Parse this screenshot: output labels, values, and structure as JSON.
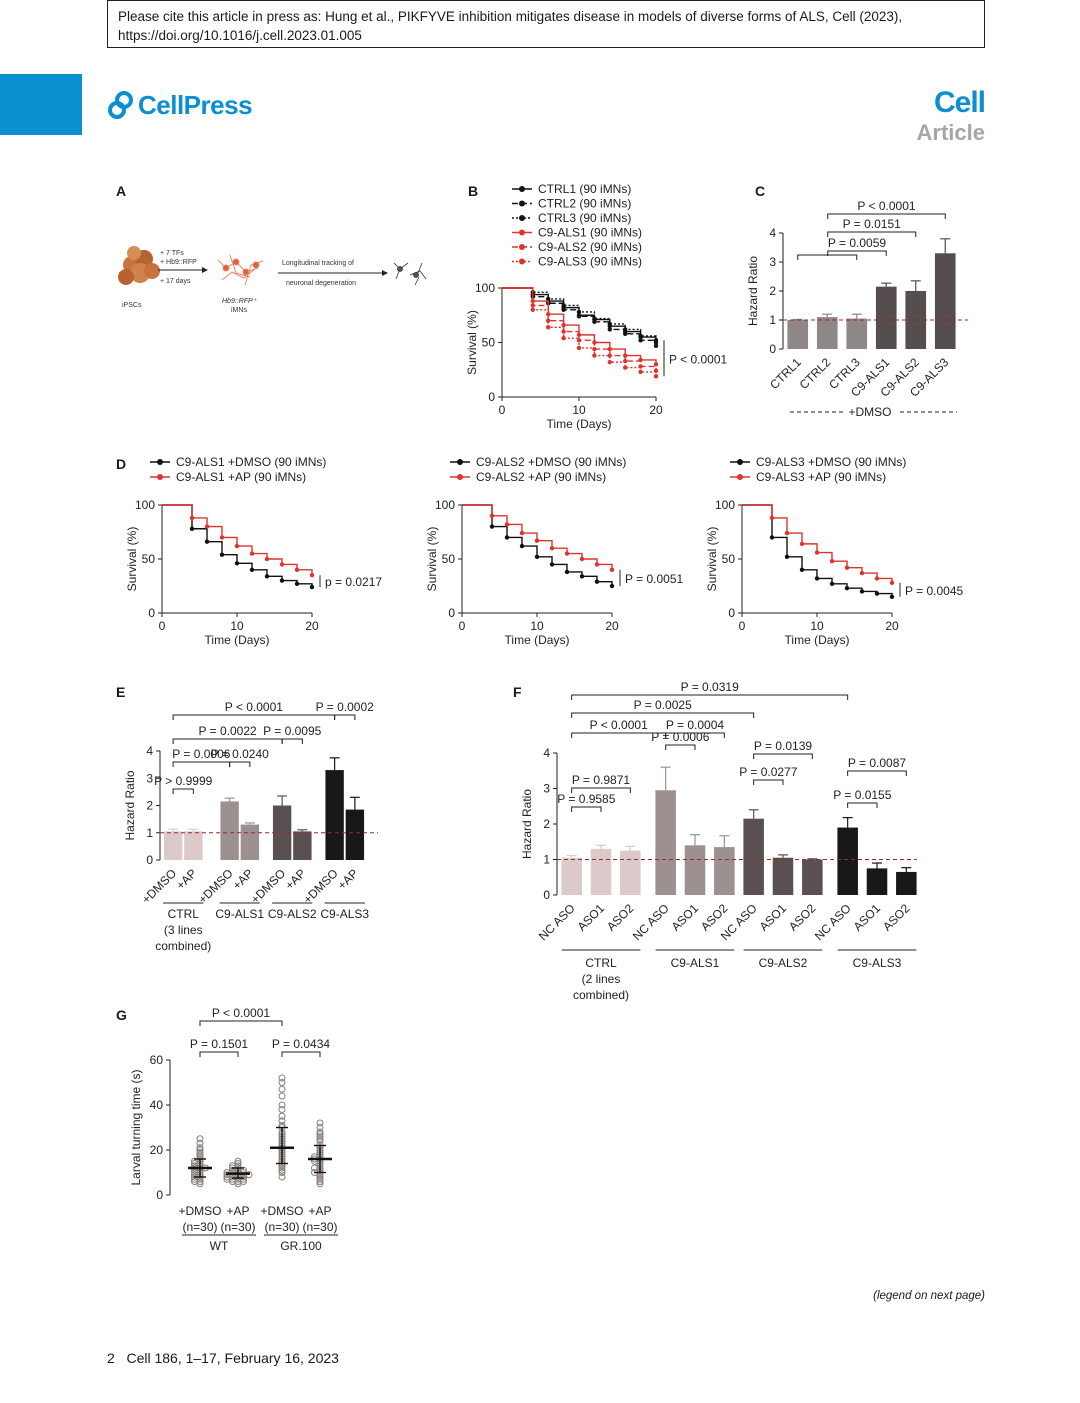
{
  "header": {
    "citation": "Please cite this article in press as: Hung et al., PIKFYVE inhibition mitigates disease in models of diverse forms of ALS, Cell (2023), https://doi.org/10.1016/j.cell.2023.01.005",
    "publisher": "CellPress",
    "journal": "Cell",
    "section": "Article"
  },
  "panels": {
    "A": "A",
    "B": "B",
    "C": "C",
    "D": "D",
    "E": "E",
    "F": "F",
    "G": "G"
  },
  "panelA": {
    "ipscs": "iPSCs",
    "tfs": "+ 7 TFs",
    "hb9": "+ Hb9::RFP",
    "days": "+ 17 days",
    "imns1": "Hb9::RFP⁺",
    "imns2": "iMNs",
    "track1": "Longitudinal tracking of",
    "track2": "neuronal degeneration"
  },
  "footer": {
    "page": "2",
    "journal_info": "Cell 186, 1–17, February 16, 2023",
    "legend_note": "(legend on next page)"
  },
  "chart_data": [
    {
      "panel": "B",
      "type": "line",
      "xlabel": "Time (Days)",
      "ylabel": "Survival (%)",
      "xlim": [
        0,
        20
      ],
      "ylim": [
        0,
        100
      ],
      "xticks": [
        0,
        10,
        20
      ],
      "yticks": [
        0,
        50,
        100
      ],
      "pvalue": "P < 0.0001",
      "series": [
        {
          "name": "CTRL1 (90 iMNs)",
          "color": "#111111",
          "dash": "",
          "x": [
            0,
            4,
            6,
            8,
            10,
            12,
            14,
            16,
            18,
            20
          ],
          "y": [
            100,
            94,
            88,
            82,
            75,
            71,
            65,
            60,
            55,
            50
          ]
        },
        {
          "name": "CTRL2 (90 iMNs)",
          "color": "#111111",
          "dash": "6,3",
          "x": [
            0,
            4,
            6,
            8,
            10,
            12,
            14,
            16,
            18,
            20
          ],
          "y": [
            100,
            92,
            86,
            80,
            74,
            69,
            62,
            58,
            52,
            47
          ]
        },
        {
          "name": "CTRL3 (90 iMNs)",
          "color": "#111111",
          "dash": "2,2",
          "x": [
            0,
            4,
            6,
            8,
            10,
            12,
            14,
            16,
            18,
            20
          ],
          "y": [
            100,
            96,
            90,
            84,
            78,
            72,
            67,
            62,
            56,
            52
          ]
        },
        {
          "name": "C9-ALS1 (90 iMNs)",
          "color": "#e0332e",
          "dash": "",
          "x": [
            0,
            4,
            6,
            8,
            10,
            12,
            14,
            16,
            18,
            20
          ],
          "y": [
            100,
            88,
            76,
            66,
            57,
            50,
            44,
            38,
            34,
            30
          ]
        },
        {
          "name": "C9-ALS2 (90 iMNs)",
          "color": "#e0332e",
          "dash": "6,3",
          "x": [
            0,
            4,
            6,
            8,
            10,
            12,
            14,
            16,
            18,
            20
          ],
          "y": [
            100,
            84,
            70,
            60,
            52,
            44,
            38,
            33,
            28,
            24
          ]
        },
        {
          "name": "C9-ALS3 (90 iMNs)",
          "color": "#e0332e",
          "dash": "2,2",
          "x": [
            0,
            4,
            6,
            8,
            10,
            12,
            14,
            16,
            18,
            20
          ],
          "y": [
            100,
            80,
            64,
            54,
            45,
            38,
            32,
            27,
            23,
            19
          ]
        }
      ]
    },
    {
      "panel": "C",
      "type": "bar",
      "ylabel": "Hazard Ratio",
      "ylim": [
        0,
        4
      ],
      "yticks": [
        0,
        1,
        2,
        3,
        4
      ],
      "categories": [
        "CTRL1",
        "CTRL2",
        "CTRL3",
        "C9-ALS1",
        "C9-ALS2",
        "C9-ALS3"
      ],
      "values": [
        1.0,
        1.1,
        1.05,
        2.15,
        2.0,
        3.3
      ],
      "errors": [
        0.02,
        0.1,
        0.15,
        0.12,
        0.35,
        0.5
      ],
      "colors": [
        "#8e8687",
        "#8e8687",
        "#8e8687",
        "#554d4e",
        "#554d4e",
        "#554d4e"
      ],
      "group_label": "+DMSO",
      "comparisons": [
        "P < 0.0001",
        "P = 0.0151",
        "P = 0.0059"
      ]
    },
    {
      "panel": "D1",
      "type": "line",
      "xlabel": "Time (Days)",
      "ylabel": "Survival (%)",
      "xlim": [
        0,
        20
      ],
      "ylim": [
        0,
        100
      ],
      "xticks": [
        0,
        10,
        20
      ],
      "yticks": [
        0,
        50,
        100
      ],
      "pvalue": "p = 0.0217",
      "series": [
        {
          "name": "C9-ALS1 +DMSO (90 iMNs)",
          "color": "#111111",
          "x": [
            0,
            4,
            6,
            8,
            10,
            12,
            14,
            16,
            18,
            20
          ],
          "y": [
            100,
            78,
            66,
            54,
            46,
            40,
            34,
            30,
            27,
            24
          ]
        },
        {
          "name": "C9-ALS1 +AP (90 iMNs)",
          "color": "#e0332e",
          "x": [
            0,
            4,
            6,
            8,
            10,
            12,
            14,
            16,
            18,
            20
          ],
          "y": [
            100,
            88,
            80,
            70,
            62,
            55,
            50,
            45,
            40,
            35
          ]
        }
      ]
    },
    {
      "panel": "D2",
      "type": "line",
      "xlabel": "Time (Days)",
      "ylabel": "Survival (%)",
      "xlim": [
        0,
        20
      ],
      "ylim": [
        0,
        100
      ],
      "xticks": [
        0,
        10,
        20
      ],
      "yticks": [
        0,
        50,
        100
      ],
      "pvalue": "P = 0.0051",
      "series": [
        {
          "name": "C9-ALS2 +DMSO (90 iMNs)",
          "color": "#111111",
          "x": [
            0,
            4,
            6,
            8,
            10,
            12,
            14,
            16,
            18,
            20
          ],
          "y": [
            100,
            80,
            70,
            62,
            52,
            45,
            38,
            34,
            29,
            25
          ]
        },
        {
          "name": "C9-ALS2 +AP (90 iMNs)",
          "color": "#e0332e",
          "x": [
            0,
            4,
            6,
            8,
            10,
            12,
            14,
            16,
            18,
            20
          ],
          "y": [
            100,
            90,
            82,
            74,
            67,
            60,
            55,
            50,
            45,
            40
          ]
        }
      ]
    },
    {
      "panel": "D3",
      "type": "line",
      "xlabel": "Time (Days)",
      "ylabel": "Survival (%)",
      "xlim": [
        0,
        20
      ],
      "ylim": [
        0,
        100
      ],
      "xticks": [
        0,
        10,
        20
      ],
      "yticks": [
        0,
        50,
        100
      ],
      "pvalue": "P = 0.0045",
      "series": [
        {
          "name": "C9-ALS3 +DMSO (90 iMNs)",
          "color": "#111111",
          "x": [
            0,
            4,
            6,
            8,
            10,
            12,
            14,
            16,
            18,
            20
          ],
          "y": [
            100,
            70,
            52,
            40,
            32,
            27,
            23,
            20,
            18,
            15
          ]
        },
        {
          "name": "C9-ALS3 +AP (90 iMNs)",
          "color": "#e0332e",
          "x": [
            0,
            4,
            6,
            8,
            10,
            12,
            14,
            16,
            18,
            20
          ],
          "y": [
            100,
            88,
            74,
            64,
            56,
            48,
            42,
            37,
            32,
            28
          ]
        }
      ]
    },
    {
      "panel": "E",
      "type": "bar",
      "ylabel": "Hazard Ratio",
      "ylim": [
        0,
        4
      ],
      "yticks": [
        0,
        1,
        2,
        3,
        4
      ],
      "categories": [
        "+DMSO",
        "+AP",
        "+DMSO",
        "+AP",
        "+DMSO",
        "+AP",
        "+DMSO",
        "+AP"
      ],
      "values": [
        1.05,
        1.05,
        2.15,
        1.3,
        2.0,
        1.05,
        3.3,
        1.85
      ],
      "errors": [
        0.08,
        0.08,
        0.12,
        0.06,
        0.35,
        0.06,
        0.45,
        0.45
      ],
      "colors": [
        "#dcc9c9",
        "#dcc9c9",
        "#9c9190",
        "#9c9190",
        "#5a5051",
        "#5a5051",
        "#181818",
        "#181818"
      ],
      "groups": [
        "CTRL",
        "(3 lines",
        "combined)",
        "C9-ALS1",
        "C9-ALS2",
        "C9-ALS3"
      ],
      "comparisons": [
        "P < 0.0001",
        "P = 0.0002",
        "P = 0.0022",
        "P = 0.0095",
        "P = 0.0006",
        "P = 0.0240",
        "P > 0.9999"
      ]
    },
    {
      "panel": "F",
      "type": "bar",
      "ylabel": "Hazard Ratio",
      "ylim": [
        0,
        4
      ],
      "yticks": [
        0,
        1,
        2,
        3,
        4
      ],
      "categories": [
        "NC ASO",
        "ASO1",
        "ASO2",
        "NC ASO",
        "ASO1",
        "ASO2",
        "NC ASO",
        "ASO1",
        "ASO2",
        "NC ASO",
        "ASO1",
        "ASO2"
      ],
      "values": [
        1.05,
        1.3,
        1.25,
        2.95,
        1.4,
        1.35,
        2.15,
        1.05,
        1.0,
        1.9,
        0.75,
        0.65
      ],
      "errors": [
        0.06,
        0.1,
        0.12,
        0.65,
        0.3,
        0.32,
        0.25,
        0.08,
        0.02,
        0.28,
        0.15,
        0.12
      ],
      "colors": [
        "#dcc9c9",
        "#dcc9c9",
        "#dcc9c9",
        "#9c9190",
        "#9c9190",
        "#9c9190",
        "#5a5051",
        "#5a5051",
        "#5a5051",
        "#181818",
        "#181818",
        "#181818"
      ],
      "groups": [
        "CTRL",
        "(2 lines",
        "combined)",
        "C9-ALS1",
        "C9-ALS2",
        "C9-ALS3"
      ],
      "comparisons": [
        "P = 0.0319",
        "P = 0.0025",
        "P < 0.0001",
        "P = 0.0004",
        "P = 0.0006",
        "P = 0.0139",
        "P = 0.0277",
        "P = 0.0087",
        "P = 0.0155",
        "P = 0.9871",
        "P = 0.9585"
      ]
    },
    {
      "panel": "G",
      "type": "scatter",
      "ylabel": "Larval turning time (s)",
      "ylim": [
        0,
        60
      ],
      "yticks": [
        0,
        20,
        40,
        60
      ],
      "categories": [
        "+DMSO",
        "+AP",
        "+DMSO",
        "+AP"
      ],
      "n_labels": [
        "(n=30)",
        "(n=30)",
        "(n=30)",
        "(n=30)"
      ],
      "groups": [
        "WT",
        "GR.100"
      ],
      "medians": [
        12,
        9.5,
        21,
        16
      ],
      "q1": [
        8,
        7.5,
        14,
        10
      ],
      "q3": [
        16,
        12,
        30,
        22
      ],
      "points": [
        [
          25,
          23,
          21,
          20,
          19,
          18,
          17,
          16,
          15,
          15,
          14,
          14,
          13,
          13,
          12,
          12,
          12,
          11,
          11,
          10,
          10,
          9,
          9,
          8,
          8,
          7,
          7,
          6,
          6,
          5
        ],
        [
          15,
          14,
          13,
          13,
          12,
          12,
          11,
          11,
          11,
          10,
          10,
          10,
          10,
          9,
          9,
          9,
          9,
          9,
          8,
          8,
          8,
          8,
          7,
          7,
          7,
          7,
          6,
          6,
          6,
          5
        ],
        [
          52,
          50,
          47,
          44,
          40,
          38,
          35,
          33,
          31,
          30,
          28,
          27,
          26,
          25,
          24,
          23,
          22,
          21,
          20,
          19,
          18,
          17,
          16,
          15,
          14,
          13,
          12,
          11,
          10,
          8
        ],
        [
          32,
          30,
          28,
          27,
          26,
          25,
          24,
          22,
          21,
          20,
          19,
          18,
          17,
          17,
          16,
          16,
          15,
          15,
          14,
          13,
          12,
          12,
          11,
          10,
          10,
          9,
          8,
          7,
          6,
          5
        ]
      ],
      "comparisons": [
        "P < 0.0001",
        "P = 0.1501",
        "P = 0.0434"
      ]
    }
  ]
}
